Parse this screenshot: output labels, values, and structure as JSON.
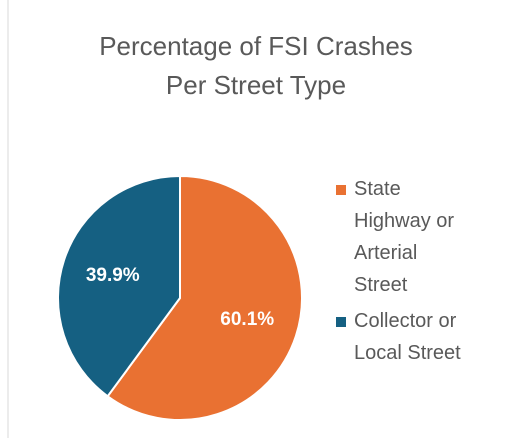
{
  "chart_data": {
    "type": "pie",
    "title": [
      "Percentage of FSI Crashes",
      "Per Street Type"
    ],
    "categories": [
      "State Highway or Arterial Street",
      "Collector or Local Street"
    ],
    "values": [
      60.1,
      39.9
    ],
    "value_labels": [
      "60.1%",
      "39.9%"
    ],
    "colors": [
      "#e97132",
      "#156082"
    ],
    "legend": "right"
  }
}
